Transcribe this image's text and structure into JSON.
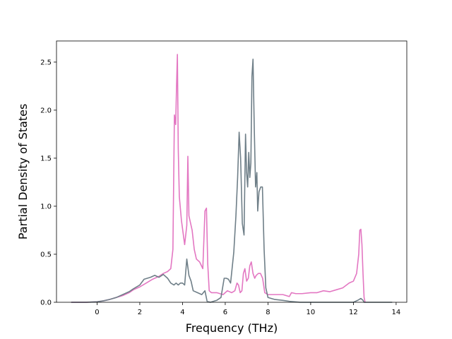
{
  "chart_data": {
    "type": "line",
    "title": "",
    "xlabel": "Frequency (THz)",
    "ylabel": "Partial Density of States",
    "xlim": [
      -1.9,
      14.5
    ],
    "ylim": [
      0.0,
      2.72
    ],
    "xticks": [
      0,
      2,
      4,
      6,
      8,
      10,
      12,
      14
    ],
    "yticks": [
      0.0,
      0.5,
      1.0,
      1.5,
      2.0,
      2.5
    ],
    "xtick_labels": [
      "0",
      "2",
      "4",
      "6",
      "8",
      "10",
      "12",
      "14"
    ],
    "ytick_labels": [
      "0.0",
      "0.5",
      "1.0",
      "1.5",
      "2.0",
      "2.5"
    ],
    "grid": false,
    "legend": "none",
    "series": [
      {
        "color": "#e377c2",
        "x": [
          -1.2,
          -0.5,
          0,
          0.3,
          0.6,
          0.9,
          1.2,
          1.5,
          1.7,
          2.0,
          2.3,
          2.6,
          2.9,
          3.1,
          3.3,
          3.45,
          3.55,
          3.62,
          3.68,
          3.72,
          3.76,
          3.8,
          3.85,
          3.95,
          4.1,
          4.2,
          4.25,
          4.3,
          4.35,
          4.45,
          4.55,
          4.65,
          4.8,
          4.95,
          5.05,
          5.12,
          5.18,
          5.25,
          5.35,
          5.6,
          5.9,
          6.1,
          6.3,
          6.45,
          6.55,
          6.62,
          6.7,
          6.78,
          6.85,
          6.92,
          7.0,
          7.08,
          7.15,
          7.22,
          7.3,
          7.38,
          7.45,
          7.55,
          7.65,
          7.75,
          7.85,
          8.0,
          8.3,
          8.7,
          9.0,
          9.1,
          9.3,
          9.6,
          10.0,
          10.3,
          10.6,
          10.9,
          11.2,
          11.5,
          11.8,
          12.0,
          12.15,
          12.25,
          12.3,
          12.35,
          12.4,
          12.45,
          12.5,
          12.55
        ],
        "y": [
          0.0,
          0.0,
          0.005,
          0.015,
          0.03,
          0.05,
          0.07,
          0.1,
          0.13,
          0.16,
          0.2,
          0.24,
          0.27,
          0.3,
          0.32,
          0.35,
          0.55,
          1.95,
          1.85,
          2.25,
          2.58,
          1.6,
          1.1,
          0.85,
          0.6,
          0.8,
          1.52,
          0.9,
          0.85,
          0.75,
          0.55,
          0.45,
          0.42,
          0.35,
          0.95,
          0.98,
          0.4,
          0.12,
          0.1,
          0.1,
          0.08,
          0.12,
          0.1,
          0.12,
          0.2,
          0.18,
          0.1,
          0.12,
          0.3,
          0.35,
          0.22,
          0.25,
          0.38,
          0.42,
          0.3,
          0.25,
          0.28,
          0.3,
          0.3,
          0.25,
          0.1,
          0.08,
          0.08,
          0.08,
          0.06,
          0.1,
          0.09,
          0.09,
          0.1,
          0.1,
          0.12,
          0.11,
          0.13,
          0.15,
          0.2,
          0.22,
          0.3,
          0.5,
          0.75,
          0.76,
          0.6,
          0.3,
          0.05,
          0.0
        ]
      },
      {
        "color": "#6f7f88",
        "x": [
          -1.2,
          -0.5,
          0,
          0.3,
          0.6,
          0.9,
          1.2,
          1.5,
          1.7,
          2.0,
          2.2,
          2.5,
          2.7,
          2.9,
          3.1,
          3.3,
          3.45,
          3.6,
          3.7,
          3.8,
          3.9,
          4.0,
          4.1,
          4.2,
          4.3,
          4.4,
          4.5,
          4.7,
          4.9,
          5.05,
          5.15,
          5.3,
          5.6,
          5.8,
          5.95,
          6.05,
          6.15,
          6.25,
          6.4,
          6.5,
          6.58,
          6.65,
          6.72,
          6.8,
          6.88,
          6.95,
          7.0,
          7.05,
          7.1,
          7.15,
          7.2,
          7.25,
          7.3,
          7.36,
          7.42,
          7.48,
          7.52,
          7.58,
          7.66,
          7.74,
          7.82,
          7.9,
          8.0,
          8.3,
          8.7,
          9.0,
          9.5,
          10.0,
          11.0,
          12.0,
          12.2,
          12.35,
          12.45,
          12.5,
          13.8
        ],
        "y": [
          0.0,
          0.0,
          0.005,
          0.015,
          0.03,
          0.05,
          0.08,
          0.11,
          0.14,
          0.18,
          0.24,
          0.26,
          0.28,
          0.26,
          0.29,
          0.25,
          0.2,
          0.18,
          0.2,
          0.18,
          0.2,
          0.2,
          0.18,
          0.45,
          0.28,
          0.22,
          0.12,
          0.1,
          0.08,
          0.12,
          0.01,
          0.0,
          0.02,
          0.05,
          0.25,
          0.25,
          0.24,
          0.2,
          0.52,
          0.9,
          1.3,
          1.77,
          1.5,
          0.82,
          0.7,
          1.75,
          1.35,
          1.2,
          1.56,
          1.3,
          1.45,
          2.35,
          2.53,
          1.8,
          1.2,
          1.35,
          0.95,
          1.15,
          1.2,
          1.2,
          0.55,
          0.15,
          0.05,
          0.03,
          0.02,
          0.01,
          0.0,
          0.0,
          0.0,
          0.0,
          0.02,
          0.04,
          0.02,
          0.0,
          0.0
        ]
      }
    ]
  }
}
